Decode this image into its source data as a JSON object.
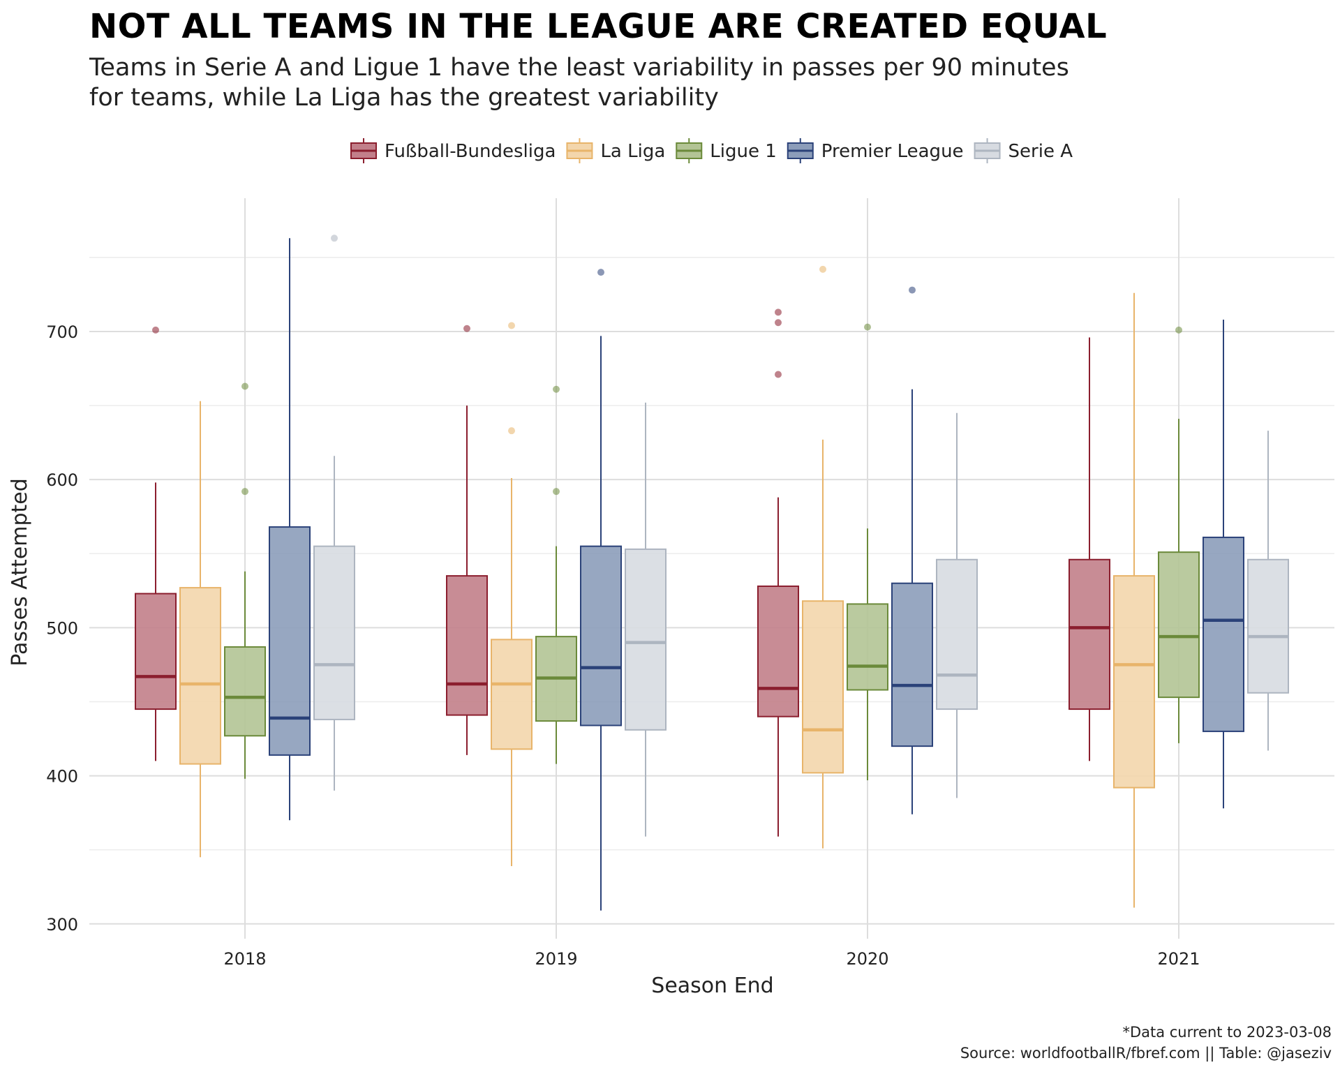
{
  "header": {
    "title": "NOT ALL TEAMS IN THE LEAGUE ARE CREATED EQUAL",
    "subtitle_lines": [
      "Teams in Serie A and Ligue 1 have the least variability in passes per 90 minutes",
      "for teams, while La Liga has the greatest variability"
    ]
  },
  "caption": {
    "line1": "*Data current to 2023-03-08",
    "line2": "Source: worldfootballR/fbref.com  ||  Table: @jaseziv"
  },
  "chart_data": {
    "type": "boxplot",
    "xlabel": "Season End",
    "ylabel": "Passes Attempted",
    "ylim": [
      290,
      790
    ],
    "yticks": [
      300,
      400,
      500,
      600,
      700
    ],
    "categories": [
      "2018",
      "2019",
      "2020",
      "2021"
    ],
    "legend_position": "top",
    "grid": true,
    "series": [
      {
        "name": "Fußball-Bundesliga",
        "color": "#8B1E2E",
        "fill": "#C27F8A",
        "boxes": [
          {
            "lower": 410,
            "q1": 445,
            "median": 467,
            "q3": 523,
            "upper": 598,
            "outliers": [
              701
            ]
          },
          {
            "lower": 414,
            "q1": 441,
            "median": 462,
            "q3": 535,
            "upper": 650,
            "outliers": [
              702
            ]
          },
          {
            "lower": 359,
            "q1": 440,
            "median": 459,
            "q3": 528,
            "upper": 588,
            "outliers": [
              671,
              706,
              713
            ]
          },
          {
            "lower": 410,
            "q1": 445,
            "median": 500,
            "q3": 546,
            "upper": 696,
            "outliers": []
          }
        ]
      },
      {
        "name": "La Liga",
        "color": "#E8B46A",
        "fill": "#F3D6AC",
        "boxes": [
          {
            "lower": 345,
            "q1": 408,
            "median": 462,
            "q3": 527,
            "upper": 653,
            "outliers": []
          },
          {
            "lower": 339,
            "q1": 418,
            "median": 462,
            "q3": 492,
            "upper": 601,
            "outliers": [
              633,
              704
            ]
          },
          {
            "lower": 351,
            "q1": 402,
            "median": 431,
            "q3": 518,
            "upper": 627,
            "outliers": [
              742
            ]
          },
          {
            "lower": 311,
            "q1": 392,
            "median": 475,
            "q3": 535,
            "upper": 726,
            "outliers": []
          }
        ]
      },
      {
        "name": "Ligue 1",
        "color": "#6B8A3A",
        "fill": "#B3C495",
        "boxes": [
          {
            "lower": 398,
            "q1": 427,
            "median": 453,
            "q3": 487,
            "upper": 538,
            "outliers": [
              592,
              663
            ]
          },
          {
            "lower": 408,
            "q1": 437,
            "median": 466,
            "q3": 494,
            "upper": 555,
            "outliers": [
              592,
              661
            ]
          },
          {
            "lower": 397,
            "q1": 458,
            "median": 474,
            "q3": 516,
            "upper": 567,
            "outliers": [
              703
            ]
          },
          {
            "lower": 422,
            "q1": 453,
            "median": 494,
            "q3": 551,
            "upper": 641,
            "outliers": [
              701
            ]
          }
        ]
      },
      {
        "name": "Premier League",
        "color": "#2B4279",
        "fill": "#8C9DBA",
        "boxes": [
          {
            "lower": 370,
            "q1": 414,
            "median": 439,
            "q3": 568,
            "upper": 763,
            "outliers": []
          },
          {
            "lower": 309,
            "q1": 434,
            "median": 473,
            "q3": 555,
            "upper": 697,
            "outliers": [
              740
            ]
          },
          {
            "lower": 374,
            "q1": 420,
            "median": 461,
            "q3": 530,
            "upper": 661,
            "outliers": [
              728
            ]
          },
          {
            "lower": 378,
            "q1": 430,
            "median": 505,
            "q3": 561,
            "upper": 708,
            "outliers": []
          }
        ]
      },
      {
        "name": "Serie A",
        "color": "#ADB5C0",
        "fill": "#D7DBE1",
        "boxes": [
          {
            "lower": 390,
            "q1": 438,
            "median": 475,
            "q3": 555,
            "upper": 616,
            "outliers": [
              763
            ]
          },
          {
            "lower": 359,
            "q1": 431,
            "median": 490,
            "q3": 553,
            "upper": 652,
            "outliers": []
          },
          {
            "lower": 385,
            "q1": 445,
            "median": 468,
            "q3": 546,
            "upper": 645,
            "outliers": []
          },
          {
            "lower": 417,
            "q1": 456,
            "median": 494,
            "q3": 546,
            "upper": 633,
            "outliers": []
          }
        ]
      }
    ]
  }
}
